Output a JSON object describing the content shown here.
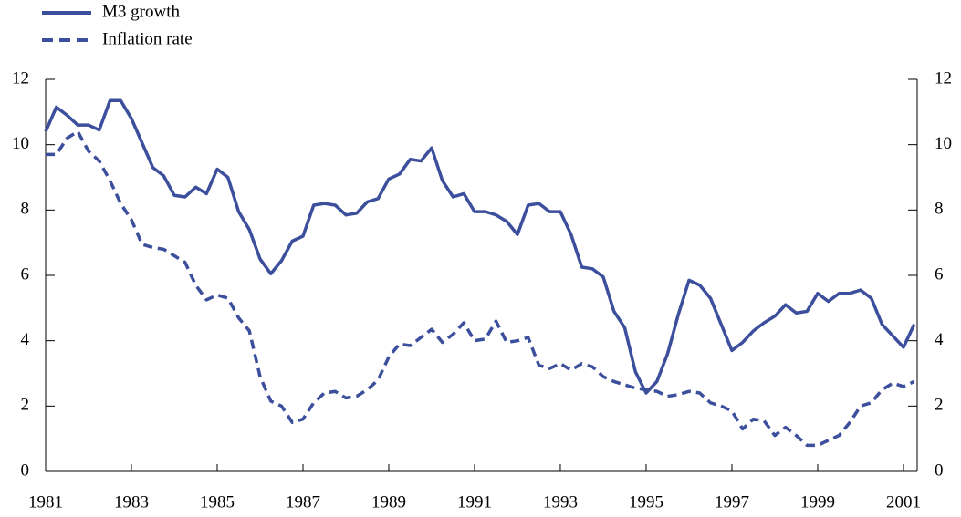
{
  "chart_data": {
    "type": "line",
    "x": [
      1981,
      1981.25,
      1981.5,
      1981.75,
      1982,
      1982.25,
      1982.5,
      1982.75,
      1983,
      1983.25,
      1983.5,
      1983.75,
      1984,
      1984.25,
      1984.5,
      1984.75,
      1985,
      1985.25,
      1985.5,
      1985.75,
      1986,
      1986.25,
      1986.5,
      1986.75,
      1987,
      1987.25,
      1987.5,
      1987.75,
      1988,
      1988.25,
      1988.5,
      1988.75,
      1989,
      1989.25,
      1989.5,
      1989.75,
      1990,
      1990.25,
      1990.5,
      1990.75,
      1991,
      1991.25,
      1991.5,
      1991.75,
      1992,
      1992.25,
      1992.5,
      1992.75,
      1993,
      1993.25,
      1993.5,
      1993.75,
      1994,
      1994.25,
      1994.5,
      1994.75,
      1995,
      1995.25,
      1995.5,
      1995.75,
      1996,
      1996.25,
      1996.5,
      1996.75,
      1997,
      1997.25,
      1997.5,
      1997.75,
      1998,
      1998.25,
      1998.5,
      1998.75,
      1999,
      1999.25,
      1999.5,
      1999.75,
      2000,
      2000.25,
      2000.5,
      2000.75,
      2001,
      2001.25
    ],
    "series": [
      {
        "name": "M3 growth",
        "color": "#3c4f9c",
        "dash": false,
        "values": [
          10.4,
          11.15,
          10.9,
          10.6,
          10.6,
          10.45,
          11.35,
          11.35,
          10.8,
          10.05,
          9.3,
          9.05,
          8.45,
          8.4,
          8.7,
          8.5,
          9.25,
          9.0,
          7.95,
          7.4,
          6.5,
          6.05,
          6.45,
          7.05,
          7.2,
          8.15,
          8.2,
          8.15,
          7.85,
          7.9,
          8.25,
          8.35,
          8.95,
          9.1,
          9.55,
          9.5,
          9.9,
          8.9,
          8.4,
          8.5,
          7.95,
          7.95,
          7.85,
          7.65,
          7.25,
          8.15,
          8.2,
          7.95,
          7.95,
          7.25,
          6.25,
          6.2,
          5.95,
          4.9,
          4.4,
          3.05,
          2.4,
          2.75,
          3.6,
          4.8,
          5.85,
          5.7,
          5.3,
          4.5,
          3.7,
          3.95,
          4.3,
          4.55,
          4.75,
          5.1,
          4.85,
          4.9,
          5.45,
          5.2,
          5.45,
          5.45,
          5.55,
          5.3,
          4.5,
          4.15,
          3.8,
          4.5
        ]
      },
      {
        "name": "Inflation rate",
        "color": "#3c4f9c",
        "dash": true,
        "values": [
          9.7,
          9.7,
          10.2,
          10.4,
          9.8,
          9.5,
          8.9,
          8.2,
          7.7,
          6.95,
          6.85,
          6.8,
          6.6,
          6.4,
          5.7,
          5.25,
          5.4,
          5.3,
          4.7,
          4.3,
          2.9,
          2.15,
          2.0,
          1.5,
          1.6,
          2.1,
          2.4,
          2.45,
          2.25,
          2.3,
          2.5,
          2.8,
          3.5,
          3.9,
          3.85,
          4.1,
          4.35,
          3.95,
          4.2,
          4.55,
          4.0,
          4.05,
          4.6,
          3.95,
          4.0,
          4.1,
          3.25,
          3.15,
          3.3,
          3.1,
          3.3,
          3.2,
          2.9,
          2.75,
          2.65,
          2.55,
          2.5,
          2.45,
          2.3,
          2.35,
          2.45,
          2.4,
          2.1,
          2.0,
          1.85,
          1.3,
          1.6,
          1.55,
          1.1,
          1.35,
          1.1,
          0.8,
          0.8,
          0.95,
          1.1,
          1.5,
          2.0,
          2.1,
          2.5,
          2.7,
          2.6,
          2.75
        ]
      }
    ],
    "xlim": [
      1981,
      2001.32
    ],
    "xticks": [
      1981,
      1983,
      1985,
      1987,
      1989,
      1991,
      1993,
      1995,
      1997,
      1999,
      2001
    ],
    "ylim": [
      0,
      12
    ],
    "yticks": [
      0,
      2,
      4,
      6,
      8,
      10,
      12
    ],
    "y2lim": [
      0,
      12
    ],
    "y2ticks": [
      0,
      2,
      4,
      6,
      8,
      10,
      12
    ],
    "legend": "top-left"
  }
}
